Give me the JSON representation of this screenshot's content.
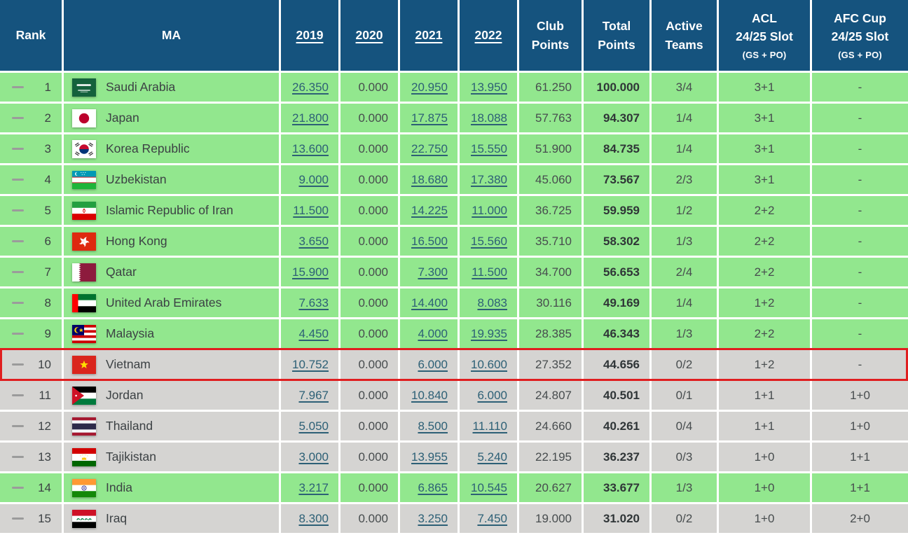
{
  "colors": {
    "header_bg": "#15537E",
    "row_green": "#92E78E",
    "row_gray": "#D5D4D2",
    "highlight_border": "#E01E1F",
    "link": "#2D6076"
  },
  "table": {
    "header": {
      "rank": "Rank",
      "ma": "MA",
      "years": [
        "2019",
        "2020",
        "2021",
        "2022"
      ],
      "club_line1": "Club",
      "club_line2": "Points",
      "total_line1": "Total",
      "total_line2": "Points",
      "active_line1": "Active",
      "active_line2": "Teams",
      "acl_line1": "ACL",
      "acl_line2": "24/25 Slot",
      "acl_sub": "(GS + PO)",
      "afc_line1": "AFC Cup",
      "afc_line2": "24/25 Slot",
      "afc_sub": "(GS + PO)"
    },
    "rows": [
      {
        "rank": "1",
        "movement_icon": "dash",
        "flag": "sa",
        "country": "Saudi Arabia",
        "y2019": "26.350",
        "y2020": "0.000",
        "y2021": "20.950",
        "y2022": "13.950",
        "club": "61.250",
        "total": "100.000",
        "active": "3/4",
        "acl": "3+1",
        "afc": "-",
        "shade": "green",
        "highlighted": false
      },
      {
        "rank": "2",
        "movement_icon": "dash",
        "flag": "jp",
        "country": "Japan",
        "y2019": "21.800",
        "y2020": "0.000",
        "y2021": "17.875",
        "y2022": "18.088",
        "club": "57.763",
        "total": "94.307",
        "active": "1/4",
        "acl": "3+1",
        "afc": "-",
        "shade": "green",
        "highlighted": false
      },
      {
        "rank": "3",
        "movement_icon": "dash",
        "flag": "kr",
        "country": "Korea Republic",
        "y2019": "13.600",
        "y2020": "0.000",
        "y2021": "22.750",
        "y2022": "15.550",
        "club": "51.900",
        "total": "84.735",
        "active": "1/4",
        "acl": "3+1",
        "afc": "-",
        "shade": "green",
        "highlighted": false
      },
      {
        "rank": "4",
        "movement_icon": "dash",
        "flag": "uz",
        "country": "Uzbekistan",
        "y2019": "9.000",
        "y2020": "0.000",
        "y2021": "18.680",
        "y2022": "17.380",
        "club": "45.060",
        "total": "73.567",
        "active": "2/3",
        "acl": "3+1",
        "afc": "-",
        "shade": "green",
        "highlighted": false
      },
      {
        "rank": "5",
        "movement_icon": "dash",
        "flag": "ir",
        "country": "Islamic Republic of Iran",
        "y2019": "11.500",
        "y2020": "0.000",
        "y2021": "14.225",
        "y2022": "11.000",
        "club": "36.725",
        "total": "59.959",
        "active": "1/2",
        "acl": "2+2",
        "afc": "-",
        "shade": "green",
        "highlighted": false
      },
      {
        "rank": "6",
        "movement_icon": "dash",
        "flag": "hk",
        "country": "Hong Kong",
        "y2019": "3.650",
        "y2020": "0.000",
        "y2021": "16.500",
        "y2022": "15.560",
        "club": "35.710",
        "total": "58.302",
        "active": "1/3",
        "acl": "2+2",
        "afc": "-",
        "shade": "green",
        "highlighted": false
      },
      {
        "rank": "7",
        "movement_icon": "dash",
        "flag": "qa",
        "country": "Qatar",
        "y2019": "15.900",
        "y2020": "0.000",
        "y2021": "7.300",
        "y2022": "11.500",
        "club": "34.700",
        "total": "56.653",
        "active": "2/4",
        "acl": "2+2",
        "afc": "-",
        "shade": "green",
        "highlighted": false
      },
      {
        "rank": "8",
        "movement_icon": "dash",
        "flag": "ae",
        "country": "United Arab Emirates",
        "y2019": "7.633",
        "y2020": "0.000",
        "y2021": "14.400",
        "y2022": "8.083",
        "club": "30.116",
        "total": "49.169",
        "active": "1/4",
        "acl": "1+2",
        "afc": "-",
        "shade": "green",
        "highlighted": false
      },
      {
        "rank": "9",
        "movement_icon": "dash",
        "flag": "my",
        "country": "Malaysia",
        "y2019": "4.450",
        "y2020": "0.000",
        "y2021": "4.000",
        "y2022": "19.935",
        "club": "28.385",
        "total": "46.343",
        "active": "1/3",
        "acl": "2+2",
        "afc": "-",
        "shade": "green",
        "highlighted": false
      },
      {
        "rank": "10",
        "movement_icon": "dash",
        "flag": "vn",
        "country": "Vietnam",
        "y2019": "10.752",
        "y2020": "0.000",
        "y2021": "6.000",
        "y2022": "10.600",
        "club": "27.352",
        "total": "44.656",
        "active": "0/2",
        "acl": "1+2",
        "afc": "-",
        "shade": "gray",
        "highlighted": true
      },
      {
        "rank": "11",
        "movement_icon": "dash",
        "flag": "jo",
        "country": "Jordan",
        "y2019": "7.967",
        "y2020": "0.000",
        "y2021": "10.840",
        "y2022": "6.000",
        "club": "24.807",
        "total": "40.501",
        "active": "0/1",
        "acl": "1+1",
        "afc": "1+0",
        "shade": "gray",
        "highlighted": false
      },
      {
        "rank": "12",
        "movement_icon": "dash",
        "flag": "th",
        "country": "Thailand",
        "y2019": "5.050",
        "y2020": "0.000",
        "y2021": "8.500",
        "y2022": "11.110",
        "club": "24.660",
        "total": "40.261",
        "active": "0/4",
        "acl": "1+1",
        "afc": "1+0",
        "shade": "gray",
        "highlighted": false
      },
      {
        "rank": "13",
        "movement_icon": "dash",
        "flag": "tj",
        "country": "Tajikistan",
        "y2019": "3.000",
        "y2020": "0.000",
        "y2021": "13.955",
        "y2022": "5.240",
        "club": "22.195",
        "total": "36.237",
        "active": "0/3",
        "acl": "1+0",
        "afc": "1+1",
        "shade": "gray",
        "highlighted": false
      },
      {
        "rank": "14",
        "movement_icon": "dash",
        "flag": "in",
        "country": "India",
        "y2019": "3.217",
        "y2020": "0.000",
        "y2021": "6.865",
        "y2022": "10.545",
        "club": "20.627",
        "total": "33.677",
        "active": "1/3",
        "acl": "1+0",
        "afc": "1+1",
        "shade": "green",
        "highlighted": false
      },
      {
        "rank": "15",
        "movement_icon": "dash",
        "flag": "iq",
        "country": "Iraq",
        "y2019": "8.300",
        "y2020": "0.000",
        "y2021": "3.250",
        "y2022": "7.450",
        "club": "19.000",
        "total": "31.020",
        "active": "0/2",
        "acl": "1+0",
        "afc": "2+0",
        "shade": "gray",
        "highlighted": false
      }
    ]
  }
}
